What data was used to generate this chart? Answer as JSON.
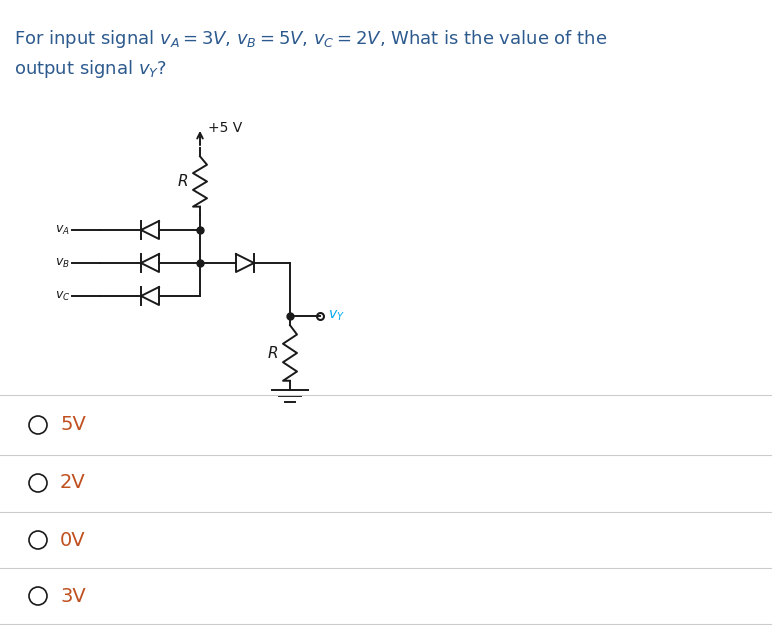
{
  "bg_color": "#ffffff",
  "text_color": "#2d5a8e",
  "circuit_color": "#1a1a1a",
  "vy_color": "#00aaee",
  "option_text_color": "#c05020",
  "options": [
    "5V",
    "2V",
    "0V",
    "3V"
  ],
  "option_fontsize": 14,
  "line_color": "#cccccc",
  "title_line1": "For input signal $v_A = 3V$, $v_B = 5V$, $v_C = 2V$, What is the value of the",
  "title_line2": "output signal $v_Y$?",
  "title_fontsize": 13,
  "title_color": "#2d5a8e"
}
